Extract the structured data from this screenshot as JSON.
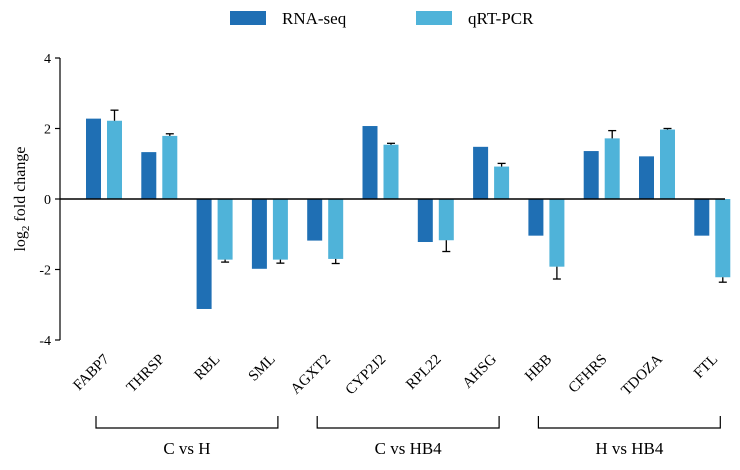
{
  "chart_data": {
    "type": "bar",
    "title": "",
    "xlabel": "",
    "ylabel": "log",
    "ylabel_subscript": "2",
    "ylabel_suffix": " fold change",
    "ylim": [
      -4,
      4
    ],
    "yticks": [
      4,
      2,
      0,
      -2,
      -4
    ],
    "categories": [
      "FABP7",
      "THRSP",
      "RBL",
      "SML",
      "AGXT2",
      "CYP2J2",
      "RPL22",
      "AHSG",
      "HBB",
      "CFHRS",
      "TDOZA",
      "FTL"
    ],
    "series": [
      {
        "name": "RNA-seq",
        "color": "#1f6fb4",
        "values": [
          2.28,
          1.33,
          -3.12,
          -1.98,
          -1.18,
          2.07,
          -1.22,
          1.48,
          -1.04,
          1.36,
          1.21,
          -1.04
        ],
        "errors": [
          0,
          0,
          0,
          0,
          0,
          0,
          0,
          0,
          0,
          0,
          0,
          0
        ]
      },
      {
        "name": "qRT-PCR",
        "color": "#4fb3d9",
        "values": [
          2.22,
          1.79,
          -1.72,
          -1.72,
          -1.7,
          1.54,
          -1.17,
          0.92,
          -1.92,
          1.72,
          1.97,
          -2.22
        ],
        "errors": [
          0.3,
          0.06,
          0.07,
          0.1,
          0.13,
          0.04,
          0.32,
          0.09,
          0.35,
          0.22,
          0.03,
          0.14
        ]
      }
    ],
    "legend": {
      "position": "top-center",
      "entries": [
        "RNA-seq",
        "qRT-PCR"
      ]
    },
    "groups": [
      {
        "label": "C vs H",
        "from": 0,
        "to": 3
      },
      {
        "label": "C vs HB4",
        "from": 4,
        "to": 7
      },
      {
        "label": "H vs HB4",
        "from": 8,
        "to": 11
      }
    ]
  }
}
